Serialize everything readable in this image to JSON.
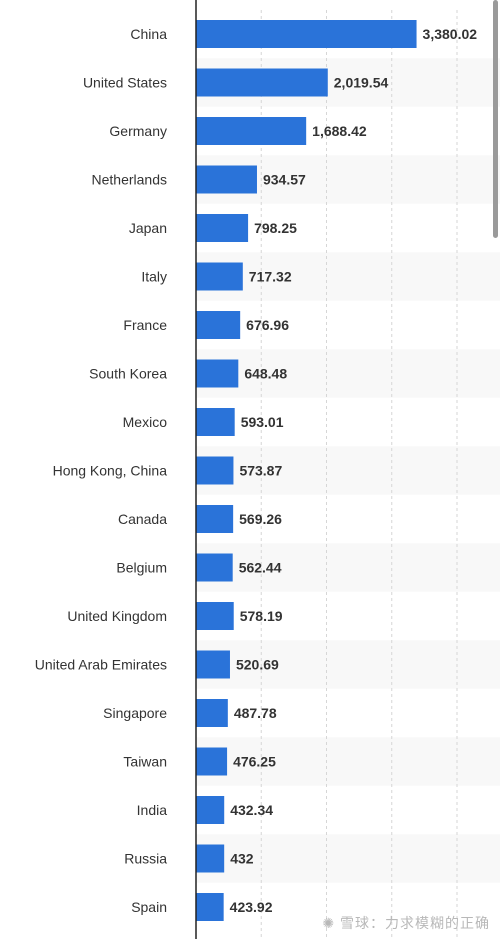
{
  "colors": {
    "bar": "#2a73d9",
    "grid": "#d6d6d6",
    "axis": "#222222",
    "band": "#f8f8f8"
  },
  "watermark": {
    "text": "雪球：力求模糊的正确",
    "icon": "snowball-logo-icon"
  },
  "chart_data": {
    "type": "bar",
    "orientation": "horizontal",
    "title": "",
    "xlabel": "",
    "ylabel": "",
    "grid": true,
    "xlim": [
      0,
      4000
    ],
    "categories": [
      "China",
      "United States",
      "Germany",
      "Netherlands",
      "Japan",
      "Italy",
      "France",
      "South Korea",
      "Mexico",
      "Hong Kong, China",
      "Canada",
      "Belgium",
      "United Kingdom",
      "United Arab Emirates",
      "Singapore",
      "Taiwan",
      "India",
      "Russia",
      "Spain"
    ],
    "values": [
      3380.02,
      2019.54,
      1688.42,
      934.57,
      798.25,
      717.32,
      676.96,
      648.48,
      593.01,
      573.87,
      569.26,
      562.44,
      578.19,
      520.69,
      487.78,
      476.25,
      432.34,
      432,
      423.92
    ],
    "value_labels": [
      "3,380.02",
      "2,019.54",
      "1,688.42",
      "934.57",
      "798.25",
      "717.32",
      "676.96",
      "648.48",
      "593.01",
      "573.87",
      "569.26",
      "562.44",
      "578.19",
      "520.69",
      "487.78",
      "476.25",
      "432.34",
      "432",
      "423.92"
    ]
  }
}
